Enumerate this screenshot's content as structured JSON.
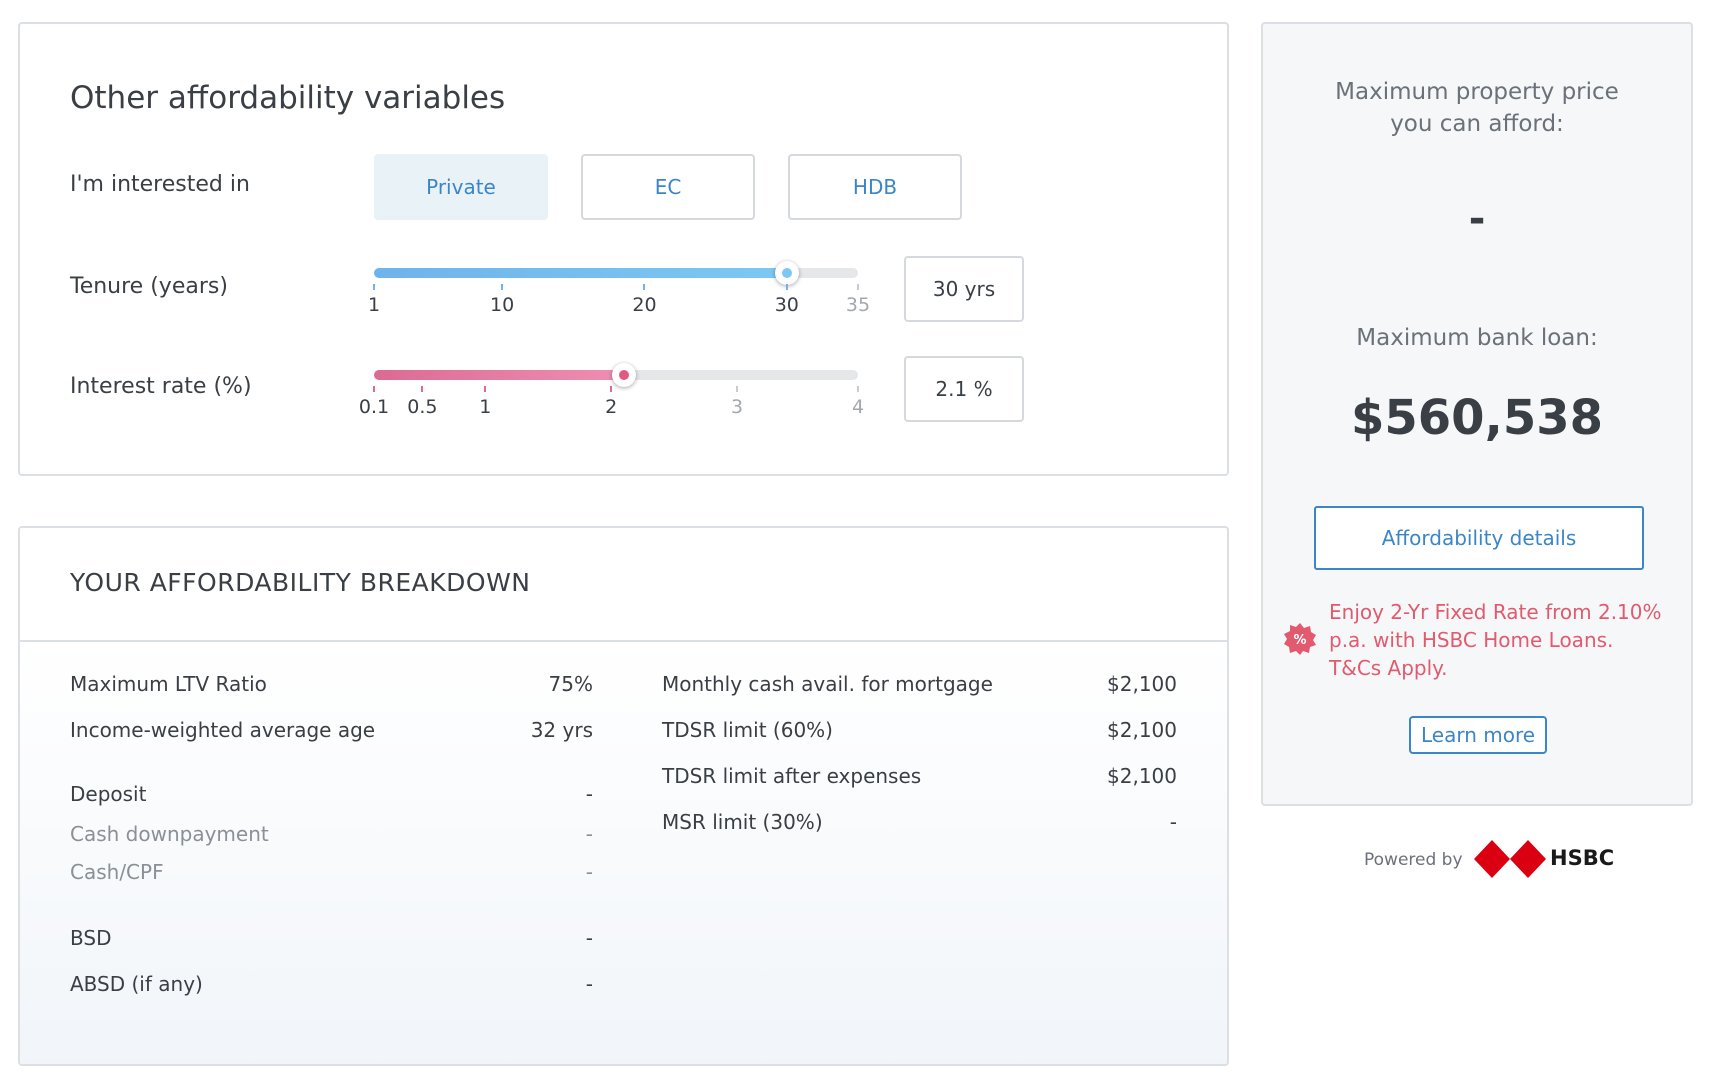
{
  "affordability_vars": {
    "title": "Other affordability variables",
    "interested_label": "I'm interested in",
    "property_types": [
      {
        "label": "Private",
        "selected": true
      },
      {
        "label": "EC",
        "selected": false
      },
      {
        "label": "HDB",
        "selected": false
      }
    ],
    "tenure": {
      "label": "Tenure (years)",
      "ticks": [
        "1",
        "10",
        "20",
        "30",
        "35"
      ],
      "min": 1,
      "max": 35,
      "value": 30,
      "display": "30 yrs"
    },
    "interest": {
      "label": "Interest rate (%)",
      "ticks": [
        "0.1",
        "0.5",
        "1",
        "2",
        "3",
        "4"
      ],
      "min": 0.1,
      "max": 4,
      "value": 2.1,
      "display": "2.1 %"
    },
    "colors": {
      "tenure_fill": "#6fb3ec",
      "interest_fill": "#dc6a93",
      "link": "#3b86c8"
    }
  },
  "breakdown": {
    "title": "YOUR AFFORDABILITY BREAKDOWN",
    "left": [
      {
        "label": "Maximum LTV Ratio",
        "value": "75%"
      },
      {
        "label": "Income-weighted average age",
        "value": "32 yrs"
      },
      {
        "label": "Deposit",
        "value": "-"
      },
      {
        "label": "Cash downpayment",
        "value": "-"
      },
      {
        "label": "Cash/CPF",
        "value": "-"
      },
      {
        "label": "BSD",
        "value": "-"
      },
      {
        "label": "ABSD (if any)",
        "value": "-"
      }
    ],
    "right": [
      {
        "label": "Monthly cash avail. for mortgage",
        "value": "$2,100"
      },
      {
        "label": "TDSR limit (60%)",
        "value": "$2,100"
      },
      {
        "label": "TDSR limit after expenses",
        "value": "$2,100"
      },
      {
        "label": "MSR limit (30%)",
        "value": "-"
      }
    ]
  },
  "result": {
    "max_price_label": "Maximum property price you can afford:",
    "max_price_value": "-",
    "max_loan_label": "Maximum bank loan:",
    "max_loan_value": "$560,538",
    "details_button": "Affordability details",
    "promo_text": "Enjoy 2-Yr Fixed Rate from 2.10% p.a. with HSBC Home Loans. T&Cs Apply.",
    "promo_icon": "percent-badge-icon",
    "learn_more": "Learn more",
    "promo_color": "#e25a6e"
  },
  "footer": {
    "powered_by": "Powered by",
    "brand": "HSBC",
    "brand_logo": "hsbc-hexagon-logo"
  }
}
